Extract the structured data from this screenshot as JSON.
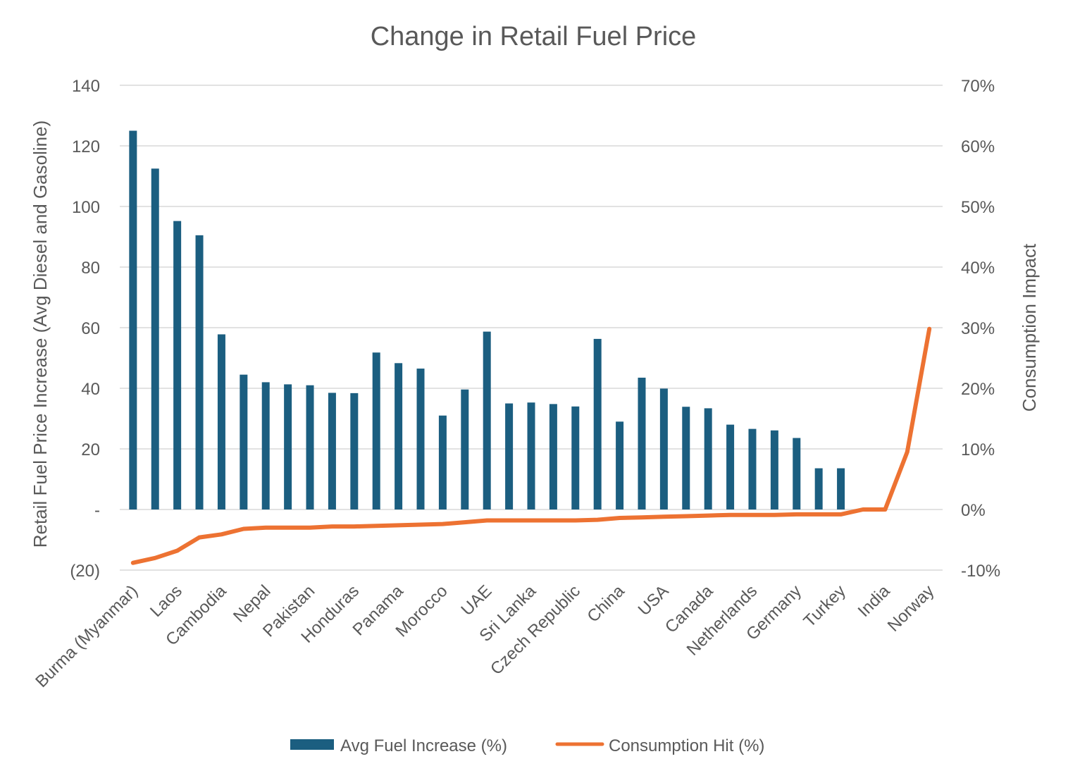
{
  "chart_data": {
    "type": "bar",
    "title": "Change in Retail Fuel Price",
    "ylabel": "Retail Fuel Price Increase (Avg Diesel and Gasoline)",
    "y2label": "Consumption Impact",
    "ylim": [
      -20,
      140
    ],
    "y2lim": [
      -10,
      70
    ],
    "yticks": [
      "(20)",
      "-",
      "20",
      "40",
      "60",
      "80",
      "100",
      "120",
      "140"
    ],
    "y2ticks": [
      "-10%",
      "0%",
      "10%",
      "20%",
      "30%",
      "40%",
      "50%",
      "60%",
      "70%"
    ],
    "x_label_every": 2,
    "legend_position": "bottom",
    "grid": true,
    "categories": [
      "Burma (Myanmar)",
      "",
      "Laos",
      "",
      "Cambodia",
      "",
      "Nepal",
      "",
      "Pakistan",
      "",
      "Honduras",
      "",
      "Panama",
      "",
      "Morocco",
      "",
      "UAE",
      "",
      "Sri Lanka",
      "",
      "Czech Republic",
      "",
      "China",
      "",
      "USA",
      "",
      "Canada",
      "",
      "Netherlands",
      "",
      "Germany",
      "",
      "Turkey",
      "",
      "India",
      "",
      "Norway"
    ],
    "series": [
      {
        "name": "Avg Fuel Increase (%)",
        "type": "bar",
        "axis": "left",
        "color": "#1b5e80",
        "values": [
          125,
          112.5,
          95.2,
          90.5,
          57.8,
          44.5,
          42.0,
          41.3,
          41.0,
          38.5,
          38.4,
          51.8,
          48.3,
          46.5,
          31.0,
          39.6,
          58.7,
          35.0,
          35.3,
          34.8,
          34.0,
          56.3,
          29.0,
          43.5,
          39.9,
          33.9,
          33.4,
          28.0,
          26.6,
          26.1,
          23.6,
          13.6,
          13.6,
          0,
          0,
          0,
          0
        ]
      },
      {
        "name": "Consumption Hit (%)",
        "type": "line",
        "axis": "right",
        "color": "#ed7232",
        "values": [
          -8.8,
          -8.0,
          -6.8,
          -4.6,
          -4.1,
          -3.2,
          -3.0,
          -3.0,
          -3.0,
          -2.8,
          -2.8,
          -2.7,
          -2.6,
          -2.5,
          -2.4,
          -2.1,
          -1.8,
          -1.8,
          -1.8,
          -1.8,
          -1.8,
          -1.7,
          -1.4,
          -1.3,
          -1.2,
          -1.1,
          -1.0,
          -0.9,
          -0.9,
          -0.9,
          -0.8,
          -0.8,
          -0.8,
          0.0,
          0.0,
          9.5,
          29.8
        ]
      }
    ]
  }
}
